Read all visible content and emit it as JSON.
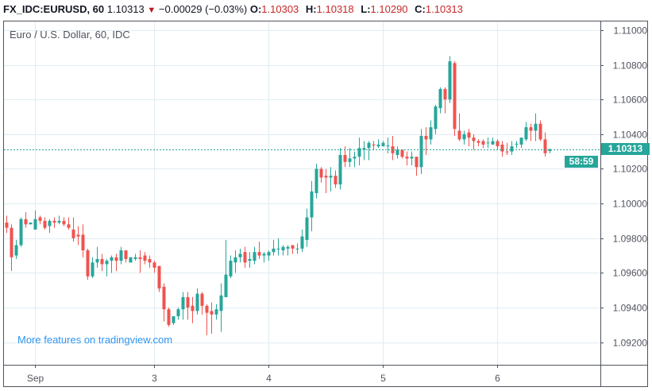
{
  "header": {
    "symbol": "FX_IDC:EURUSD, 60",
    "last": "1.10313",
    "change_icon": "triangle-down-icon",
    "change": "−0.00029 (−0.03%)",
    "o_label": "O:",
    "o": "1.10303",
    "h_label": "H:",
    "h": "1.10318",
    "l_label": "L:",
    "l": "1.10290",
    "c_label": "C:",
    "c": "1.10313"
  },
  "legend": "Euro / U.S. Dollar, 60, IDC",
  "watermark": "More features on tradingview.com",
  "price_tag": "1.10313",
  "countdown": "58:59",
  "colors": {
    "up": "#26a69a",
    "down": "#ef5350",
    "grid": "#e1ecf2",
    "price_line": "#26a69a"
  },
  "chart_data": {
    "type": "candlestick",
    "interval": "60",
    "ylim": [
      1.0907,
      1.1105
    ],
    "grid": true,
    "y_ticks": [
      "1.11000",
      "1.10800",
      "1.10600",
      "1.10400",
      "1.10200",
      "1.10000",
      "1.09800",
      "1.09600",
      "1.09400",
      "1.09200"
    ],
    "x_ticks": [
      {
        "label": "Sep",
        "index": 6
      },
      {
        "label": "3",
        "index": 31
      },
      {
        "label": "4",
        "index": 55
      },
      {
        "label": "5",
        "index": 79
      },
      {
        "label": "6",
        "index": 103
      }
    ],
    "last_price": 1.10313,
    "ohlc": [
      [
        1.0989,
        1.0993,
        1.0983,
        1.0986
      ],
      [
        1.0986,
        1.0988,
        1.0961,
        1.0969
      ],
      [
        1.097,
        1.0979,
        1.0968,
        1.0976
      ],
      [
        1.0976,
        1.0992,
        1.0975,
        1.0991
      ],
      [
        1.0991,
        1.0995,
        1.0986,
        1.0988
      ],
      [
        1.0988,
        1.0989,
        1.0988,
        1.0989
      ],
      [
        1.0985,
        1.0996,
        1.0985,
        1.0991
      ],
      [
        1.0992,
        1.0993,
        1.0988,
        1.099
      ],
      [
        1.099,
        1.0992,
        1.0985,
        1.0986
      ],
      [
        1.0987,
        1.0991,
        1.0983,
        1.099
      ],
      [
        1.099,
        1.0992,
        1.0986,
        1.0989
      ],
      [
        1.0989,
        1.0993,
        1.0988,
        1.099
      ],
      [
        1.099,
        1.0992,
        1.0987,
        1.0988
      ],
      [
        1.0988,
        1.0992,
        1.0985,
        1.0986
      ],
      [
        1.0985,
        1.0992,
        1.0978,
        1.098
      ],
      [
        1.0982,
        1.0987,
        1.0976,
        1.0981
      ],
      [
        1.0982,
        1.0988,
        1.0969,
        1.0973
      ],
      [
        1.0973,
        1.0974,
        1.0956,
        1.0958
      ],
      [
        1.0958,
        1.0969,
        1.0957,
        1.0966
      ],
      [
        1.0966,
        1.0975,
        1.0963,
        1.0968
      ],
      [
        1.0968,
        1.0971,
        1.0961,
        1.0965
      ],
      [
        1.0965,
        1.0968,
        1.0958,
        1.0967
      ],
      [
        1.0967,
        1.097,
        1.096,
        1.0969
      ],
      [
        1.0969,
        1.0971,
        1.0961,
        1.0967
      ],
      [
        1.0967,
        1.0975,
        1.0965,
        1.0973
      ],
      [
        1.0973,
        1.0973,
        1.0966,
        1.0968
      ],
      [
        1.0966,
        1.0969,
        1.0966,
        1.0969
      ],
      [
        1.0968,
        1.0971,
        1.0967,
        1.0969
      ],
      [
        1.0969,
        1.0973,
        1.096,
        1.0968
      ],
      [
        1.097,
        1.0972,
        1.0965,
        1.0967
      ],
      [
        1.0968,
        1.097,
        1.0963,
        1.0966
      ],
      [
        1.0966,
        1.0967,
        1.096,
        1.0963
      ],
      [
        1.0964,
        1.0964,
        1.0949,
        1.0951
      ],
      [
        1.0952,
        1.0954,
        1.0932,
        1.0939
      ],
      [
        1.0939,
        1.094,
        1.0929,
        1.093
      ],
      [
        1.0931,
        1.0935,
        1.093,
        1.0935
      ],
      [
        1.0935,
        1.094,
        1.0933,
        1.0939
      ],
      [
        1.0939,
        1.0949,
        1.0933,
        1.0946
      ],
      [
        1.0946,
        1.0949,
        1.0933,
        1.094
      ],
      [
        1.0941,
        1.0946,
        1.0931,
        1.0938
      ],
      [
        1.0938,
        1.0951,
        1.0936,
        1.0948
      ],
      [
        1.0948,
        1.0949,
        1.0936,
        1.0941
      ],
      [
        1.0941,
        1.0942,
        1.0924,
        1.0937
      ],
      [
        1.0938,
        1.0943,
        1.0925,
        1.0936
      ],
      [
        1.0936,
        1.0942,
        1.0933,
        1.0939
      ],
      [
        1.0938,
        1.0954,
        1.0926,
        1.0947
      ],
      [
        1.0946,
        1.0979,
        1.0946,
        1.0959
      ],
      [
        1.0958,
        1.097,
        1.0957,
        1.0967
      ],
      [
        1.0966,
        1.0973,
        1.096,
        1.0969
      ],
      [
        1.0969,
        1.0974,
        1.0966,
        1.0971
      ],
      [
        1.0972,
        1.0975,
        1.0963,
        1.0966
      ],
      [
        1.0967,
        1.0972,
        1.0963,
        1.0968
      ],
      [
        1.0967,
        1.0975,
        1.0965,
        1.0972
      ],
      [
        1.0972,
        1.0978,
        1.0968,
        1.097
      ],
      [
        1.097,
        1.0972,
        1.0966,
        1.0971
      ],
      [
        1.097,
        1.0973,
        1.0967,
        1.0972
      ],
      [
        1.0972,
        1.0979,
        1.097,
        1.0974
      ],
      [
        1.0974,
        1.098,
        1.097,
        1.0974
      ],
      [
        1.0973,
        1.0976,
        1.097,
        1.0975
      ],
      [
        1.0974,
        1.0976,
        1.097,
        1.0975
      ],
      [
        1.0976,
        1.0976,
        1.0971,
        1.0974
      ],
      [
        1.0974,
        1.0977,
        1.0971,
        1.0974
      ],
      [
        1.0974,
        1.0985,
        1.0972,
        1.0981
      ],
      [
        1.0979,
        1.0997,
        1.0975,
        1.0992
      ],
      [
        1.0992,
        1.1013,
        1.0984,
        1.1007
      ],
      [
        1.1006,
        1.1023,
        1.1003,
        1.102
      ],
      [
        1.102,
        1.1021,
        1.1012,
        1.1015
      ],
      [
        1.1016,
        1.102,
        1.1006,
        1.1015
      ],
      [
        1.1015,
        1.1021,
        1.1007,
        1.1016
      ],
      [
        1.1016,
        1.1019,
        1.1009,
        1.1011
      ],
      [
        1.1011,
        1.1032,
        1.1008,
        1.1028
      ],
      [
        1.1028,
        1.1033,
        1.1021,
        1.1024
      ],
      [
        1.1024,
        1.1032,
        1.1021,
        1.1026
      ],
      [
        1.1026,
        1.103,
        1.1021,
        1.1027
      ],
      [
        1.1027,
        1.1038,
        1.1022,
        1.1032
      ],
      [
        1.1031,
        1.1036,
        1.1025,
        1.1032
      ],
      [
        1.1032,
        1.1036,
        1.1025,
        1.1035
      ],
      [
        1.1034,
        1.1036,
        1.1031,
        1.10335
      ],
      [
        1.1033,
        1.1037,
        1.1032,
        1.1034
      ],
      [
        1.1033,
        1.1036,
        1.1033,
        1.1035
      ],
      [
        1.1033,
        1.1038,
        1.1029,
        1.10335
      ],
      [
        1.1033,
        1.1039,
        1.1025,
        1.1029
      ],
      [
        1.1028,
        1.1033,
        1.1026,
        1.1031
      ],
      [
        1.1031,
        1.1031,
        1.1026,
        1.1027
      ],
      [
        1.1027,
        1.103,
        1.1022,
        1.1026
      ],
      [
        1.1026,
        1.103,
        1.1022,
        1.1027
      ],
      [
        1.1027,
        1.1027,
        1.1016,
        1.1021
      ],
      [
        1.1021,
        1.1043,
        1.1017,
        1.1039
      ],
      [
        1.1039,
        1.1044,
        1.1028,
        1.1037
      ],
      [
        1.1037,
        1.1048,
        1.1034,
        1.1044
      ],
      [
        1.1043,
        1.1057,
        1.104,
        1.1056
      ],
      [
        1.1055,
        1.1067,
        1.1052,
        1.1066
      ],
      [
        1.1066,
        1.1067,
        1.1052,
        1.106
      ],
      [
        1.106,
        1.1085,
        1.1058,
        1.1082
      ],
      [
        1.1081,
        1.1082,
        1.1039,
        1.1043
      ],
      [
        1.1042,
        1.1052,
        1.1036,
        1.1037
      ],
      [
        1.1037,
        1.1042,
        1.1034,
        1.104
      ],
      [
        1.1041,
        1.1043,
        1.1033,
        1.1038
      ],
      [
        1.1038,
        1.104,
        1.1031,
        1.1036
      ],
      [
        1.1036,
        1.1037,
        1.1033,
        1.1035
      ],
      [
        1.1036,
        1.1037,
        1.1032,
        1.1034
      ],
      [
        1.1035,
        1.1038,
        1.1032,
        1.10352
      ],
      [
        1.1034,
        1.1038,
        1.1034,
        1.1036
      ],
      [
        1.1036,
        1.1037,
        1.1031,
        1.1033
      ],
      [
        1.1034,
        1.1036,
        1.1027,
        1.103
      ],
      [
        1.103,
        1.1035,
        1.1028,
        1.10298
      ],
      [
        1.103,
        1.1036,
        1.1028,
        1.1033
      ],
      [
        1.1034,
        1.1036,
        1.1032,
        1.10345
      ],
      [
        1.1034,
        1.1038,
        1.1032,
        1.1038
      ],
      [
        1.1037,
        1.1047,
        1.1036,
        1.1044
      ],
      [
        1.1044,
        1.1046,
        1.1036,
        1.1042
      ],
      [
        1.1042,
        1.1052,
        1.1036,
        1.1046
      ],
      [
        1.1046,
        1.1048,
        1.1036,
        1.1037
      ],
      [
        1.1037,
        1.1041,
        1.1027,
        1.1029
      ],
      [
        1.10303,
        1.10318,
        1.1029,
        1.10313
      ]
    ]
  }
}
